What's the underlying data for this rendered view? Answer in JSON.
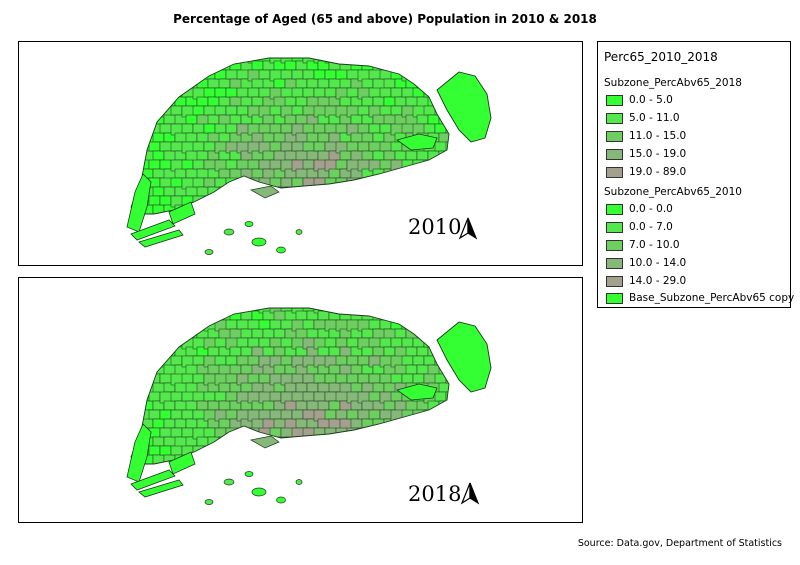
{
  "title": "Percentage of Aged (65 and above) Population in 2010 & 2018",
  "maps": [
    {
      "year_label": "2010",
      "north_arrow": "north-arrow-icon"
    },
    {
      "year_label": "2018",
      "north_arrow": "north-arrow-icon"
    }
  ],
  "legend": {
    "title": "Perc65_2010_2018",
    "groups": [
      {
        "name": "Subzone_PercAbv65_2018",
        "items": [
          {
            "label": "0.0 - 5.0",
            "color": "#33ff33"
          },
          {
            "label": "5.0 - 11.0",
            "color": "#53e84c"
          },
          {
            "label": "11.0 - 15.0",
            "color": "#6ccf5f"
          },
          {
            "label": "15.0 - 19.0",
            "color": "#86b87a"
          },
          {
            "label": "19.0 - 89.0",
            "color": "#a4a08e"
          }
        ]
      },
      {
        "name": "Subzone_PercAbv65_2010",
        "items": [
          {
            "label": "0.0 - 0.0",
            "color": "#33ff33"
          },
          {
            "label": "0.0 - 7.0",
            "color": "#53e84c"
          },
          {
            "label": "7.0 - 10.0",
            "color": "#6ccf5f"
          },
          {
            "label": "10.0 - 14.0",
            "color": "#86b87a"
          },
          {
            "label": "14.0 - 29.0",
            "color": "#a4a08e"
          }
        ]
      }
    ],
    "base_item": {
      "label": "Base_Subzone_PercAbv65 copy",
      "color": "#33ff33"
    }
  },
  "source": "Source: Data.gov, Department of Statistics"
}
